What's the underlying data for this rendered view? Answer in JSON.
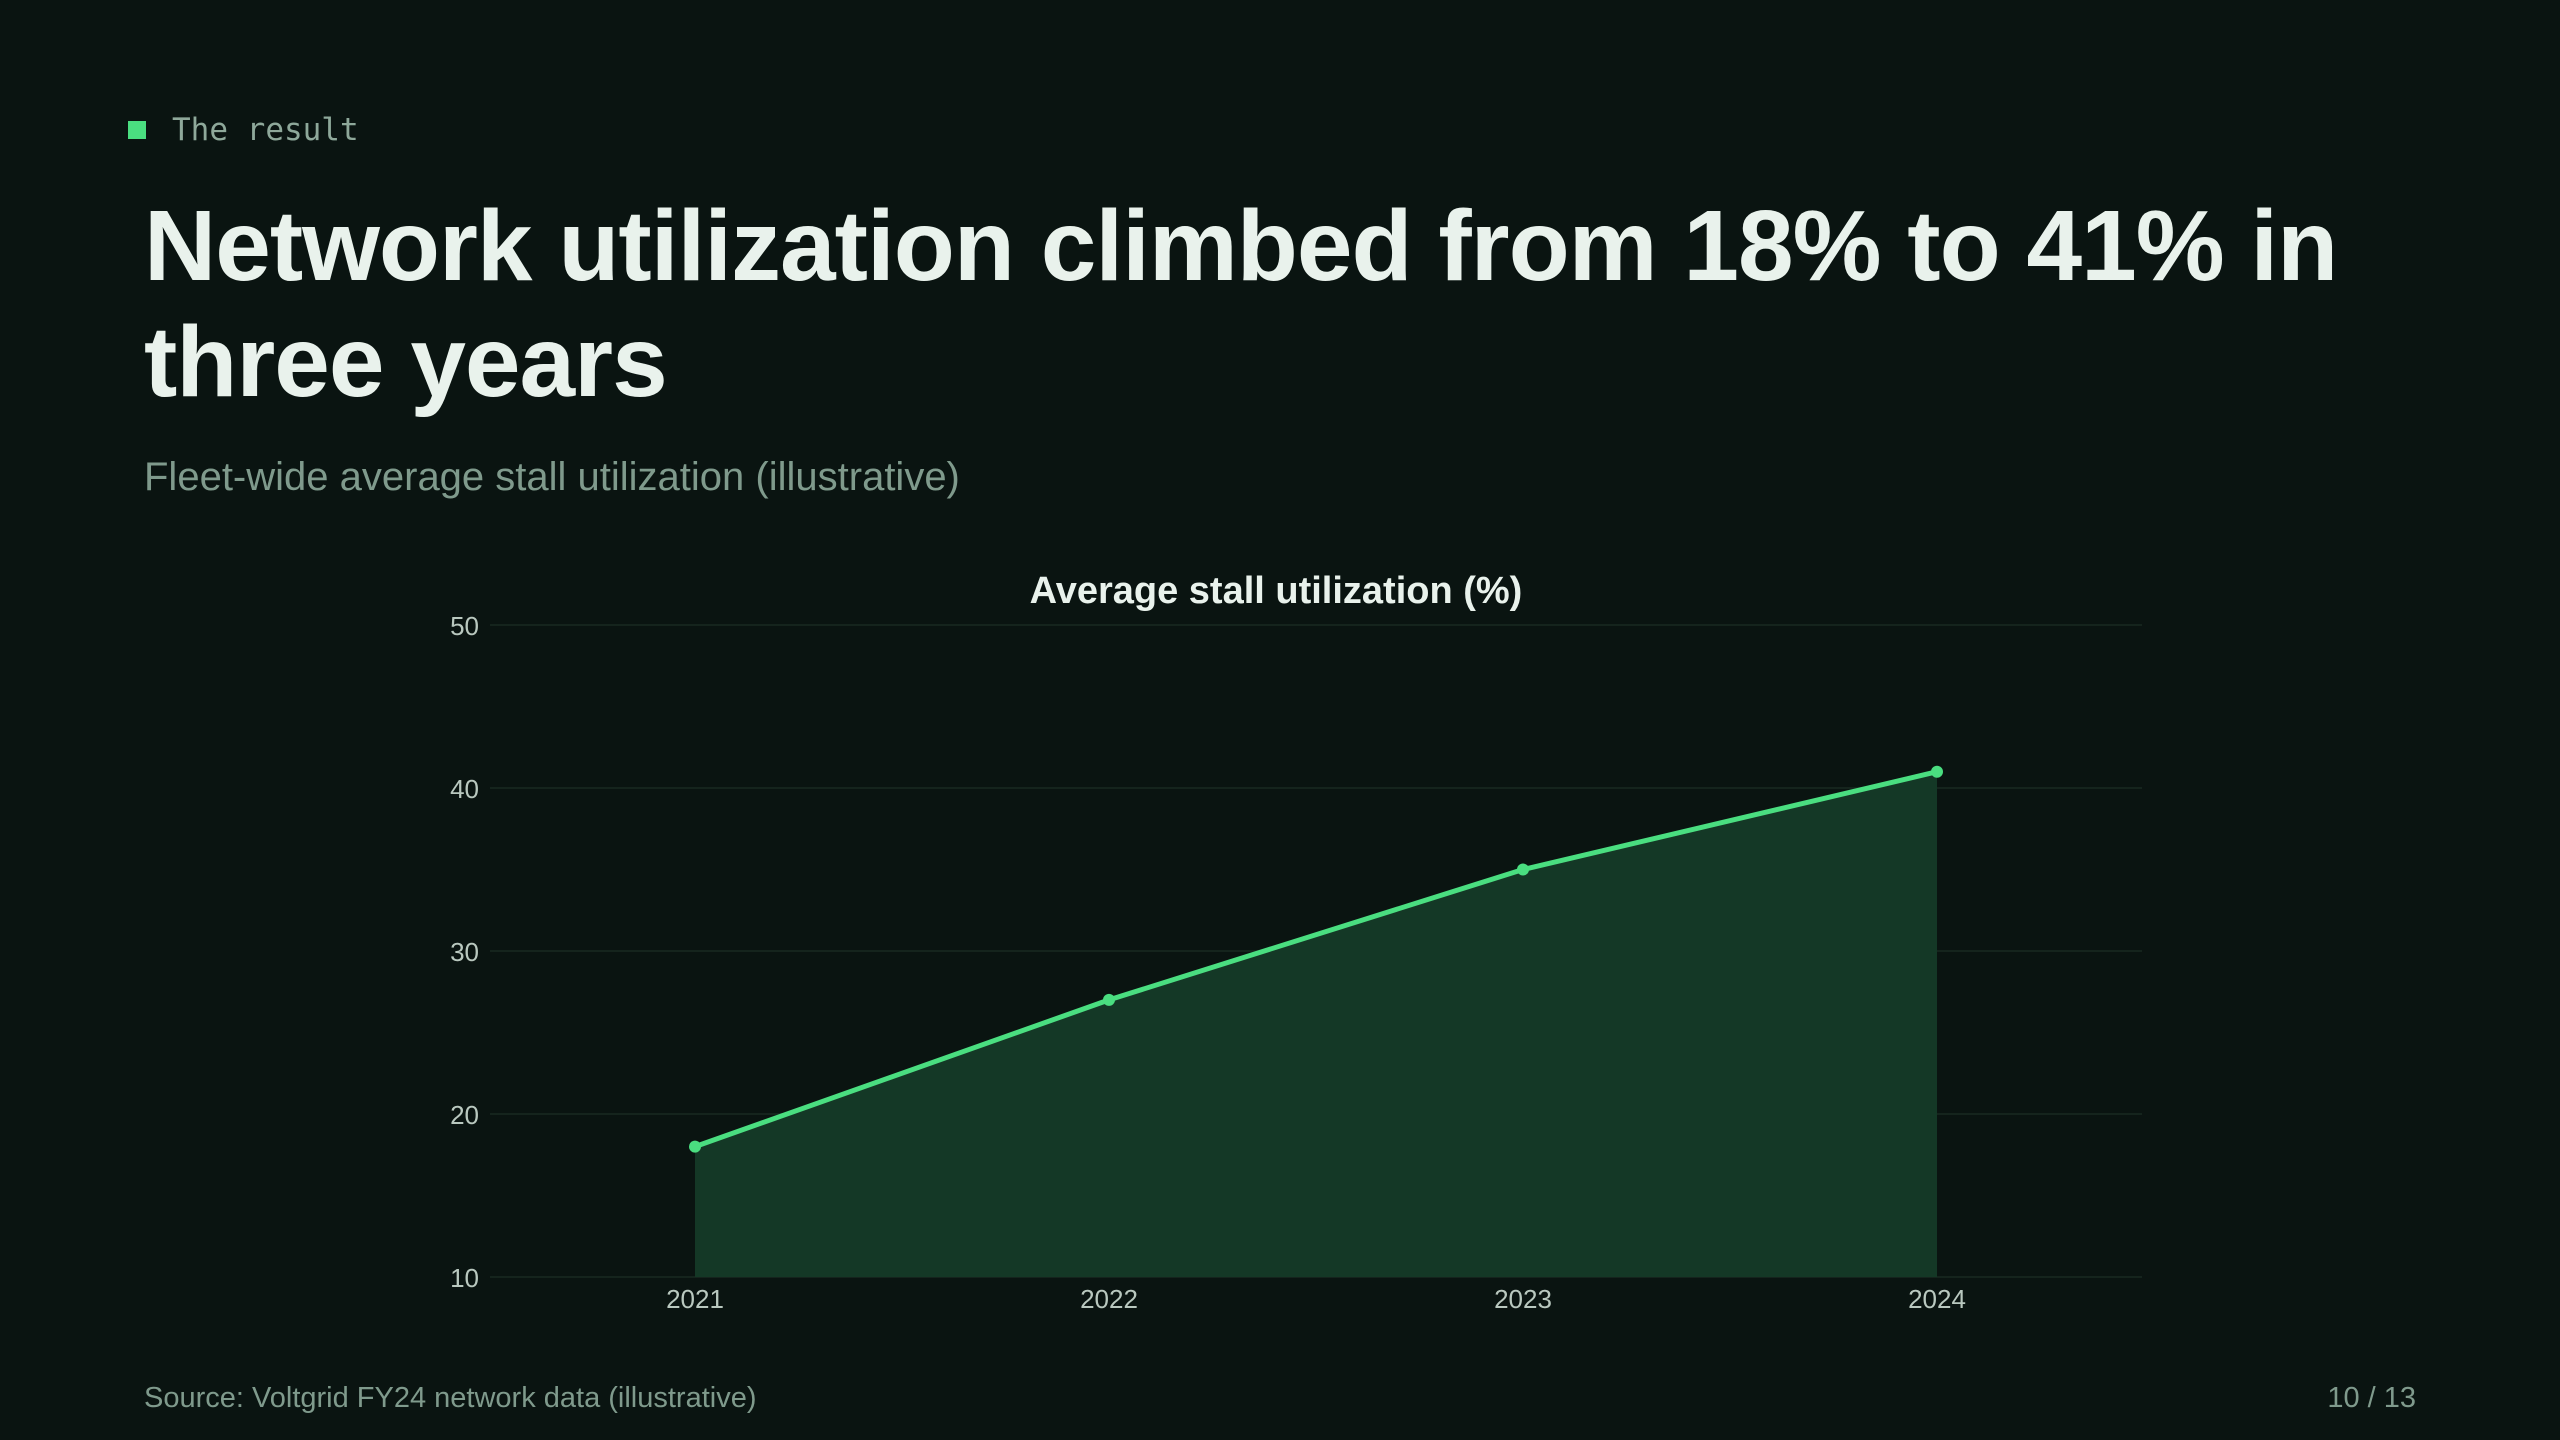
{
  "eyebrow": {
    "label": "The result",
    "icon": "square-marker-icon"
  },
  "headline": "Network utilization climbed from 18% to 41% in three years",
  "subtitle": "Fleet-wide average stall utilization (illustrative)",
  "footer": {
    "source": "Source: Voltgrid FY24 network data (illustrative)",
    "page": "10 / 13"
  },
  "colors": {
    "accent": "#4ade80",
    "background": "#0a1411",
    "area_fill": "#143826",
    "grid": "#15241d"
  },
  "chart_data": {
    "type": "area",
    "title": "Average stall utilization (%)",
    "xlabel": "",
    "ylabel": "",
    "categories": [
      "2021",
      "2022",
      "2023",
      "2024"
    ],
    "series": [
      {
        "values": [
          18,
          27,
          35,
          41
        ]
      }
    ],
    "ylim": [
      10,
      50
    ],
    "yticks": [
      10,
      20,
      30,
      40,
      50
    ],
    "grid": true,
    "legend": "none"
  }
}
